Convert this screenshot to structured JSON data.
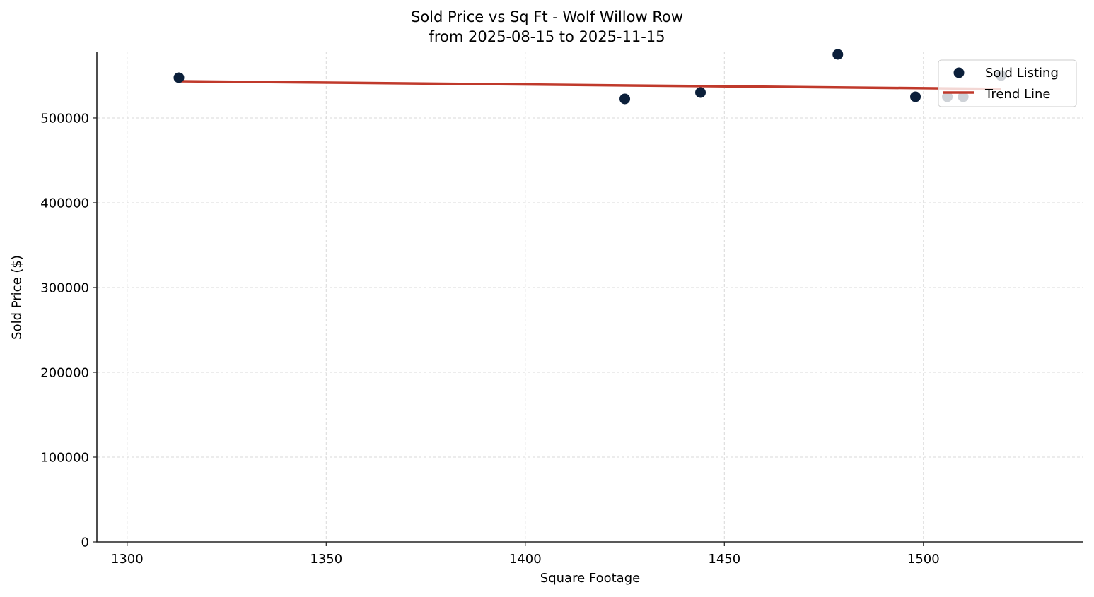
{
  "chart_data": {
    "type": "scatter",
    "title": "Sold Price vs Sq Ft - Wolf Willow Row",
    "subtitle": "from 2025-08-15 to 2025-11-15",
    "xlabel": "Square Footage",
    "ylabel": "Sold Price ($)",
    "xlim": [
      1292.4,
      1540
    ],
    "ylim": [
      0,
      578300
    ],
    "x_ticks": [
      1300,
      1350,
      1400,
      1450,
      1500
    ],
    "y_ticks": [
      0,
      100000,
      200000,
      300000,
      400000,
      500000
    ],
    "x_tick_labels": [
      "1300",
      "1350",
      "1400",
      "1450",
      "1500"
    ],
    "y_tick_labels": [
      "0",
      "100000",
      "200000",
      "300000",
      "400000",
      "500000"
    ],
    "grid": true,
    "legend_position": "upper right",
    "series": [
      {
        "name": "Sold Listing",
        "kind": "scatter",
        "color": "#0b1f3a",
        "points": [
          {
            "x": 1313,
            "y": 547500
          },
          {
            "x": 1425,
            "y": 522500
          },
          {
            "x": 1444,
            "y": 530000
          },
          {
            "x": 1478.5,
            "y": 575000
          },
          {
            "x": 1498,
            "y": 525000
          },
          {
            "x": 1506,
            "y": 525000
          },
          {
            "x": 1510,
            "y": 525000
          },
          {
            "x": 1519.5,
            "y": 550000
          }
        ]
      },
      {
        "name": "Trend Line",
        "kind": "line",
        "color": "#c0392b",
        "points": [
          {
            "x": 1313,
            "y": 543300
          },
          {
            "x": 1519.5,
            "y": 534200
          }
        ]
      }
    ]
  },
  "legend": {
    "items": [
      {
        "label": "Sold Listing"
      },
      {
        "label": "Trend Line"
      }
    ]
  },
  "colors": {
    "marker": "#0b1f3a",
    "trend": "#c0392b",
    "grid": "#d9d9d9",
    "axis": "#222222"
  }
}
